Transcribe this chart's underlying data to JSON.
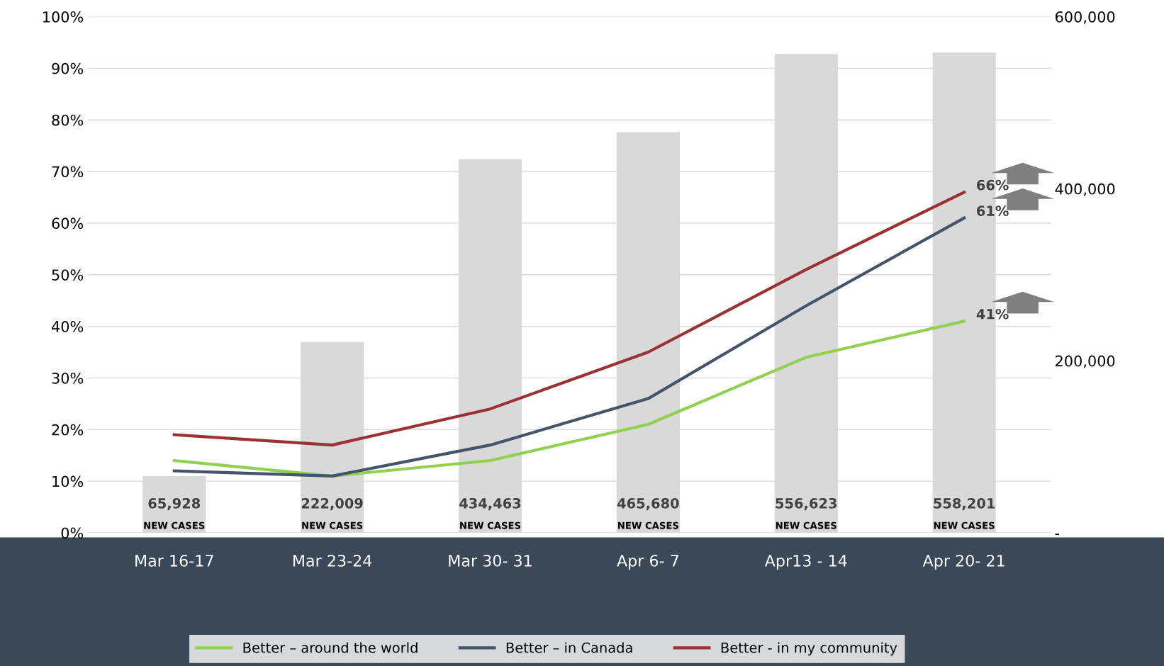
{
  "chart_data": {
    "type": "line",
    "categories": [
      "Mar 16-17",
      "Mar 23-24",
      "Mar 30- 31",
      "Apr 6- 7",
      "Apr13 - 14",
      "Apr 20- 21"
    ],
    "series": [
      {
        "name": null,
        "type": "bar",
        "axis": "y2",
        "color": "#d9d9d9",
        "values": [
          65928,
          222009,
          434463,
          465680,
          556623,
          558201
        ],
        "value_labels": [
          "65,928",
          "222,009",
          "434,463",
          "465,680",
          "556,623",
          "558,201"
        ]
      },
      {
        "name": "Better – around the world",
        "color": "#92d050",
        "values": [
          14,
          11,
          14,
          21,
          34,
          41
        ],
        "value_labels": [
          null,
          null,
          null,
          null,
          null,
          "41%"
        ]
      },
      {
        "name": "Better – in Canada",
        "color": "#44546a",
        "values": [
          12,
          11,
          17,
          26,
          44,
          61
        ],
        "value_labels": [
          null,
          null,
          null,
          null,
          null,
          "61%"
        ]
      },
      {
        "name": "Better - in my community",
        "color": "#9b3133",
        "values": [
          19,
          17,
          24,
          35,
          51,
          66
        ],
        "value_labels": [
          null,
          null,
          null,
          null,
          null,
          "66%"
        ]
      }
    ],
    "ylim": [
      0,
      100
    ],
    "yticks": [
      {
        "value": 0,
        "label": "0%"
      },
      {
        "value": 10,
        "label": "10%"
      },
      {
        "value": 20,
        "label": "20%"
      },
      {
        "value": 30,
        "label": "30%"
      },
      {
        "value": 40,
        "label": "40%"
      },
      {
        "value": 50,
        "label": "50%"
      },
      {
        "value": 60,
        "label": "60%"
      },
      {
        "value": 70,
        "label": "70%"
      },
      {
        "value": 80,
        "label": "80%"
      },
      {
        "value": 90,
        "label": "90%"
      },
      {
        "value": 100,
        "label": "100%"
      }
    ],
    "y2lim": [
      0,
      600000
    ],
    "y2ticks": [
      {
        "value": 0,
        "label": "-"
      },
      {
        "value": 200000,
        "label": "200,000"
      },
      {
        "value": 400000,
        "label": "400,000"
      },
      {
        "value": 600000,
        "label": "600,000"
      }
    ],
    "annotations": [
      {
        "text": "NEW CASES",
        "x": "Mar 16-17",
        "y": 0
      },
      {
        "text": "NEW CASES",
        "x": "Mar 23-24",
        "y": 0
      },
      {
        "text": "NEW CASES",
        "x": "Mar 30- 31",
        "y": 0
      },
      {
        "text": "NEW CASES",
        "x": "Apr 6- 7",
        "y": 0
      },
      {
        "text": "NEW CASES",
        "x": "Apr13 - 14",
        "y": 0
      },
      {
        "text": "NEW CASES",
        "x": "Apr 20- 21",
        "y": 0
      }
    ],
    "grid": "y",
    "legend": "bottom",
    "marker": "none",
    "line_style": "solid"
  }
}
